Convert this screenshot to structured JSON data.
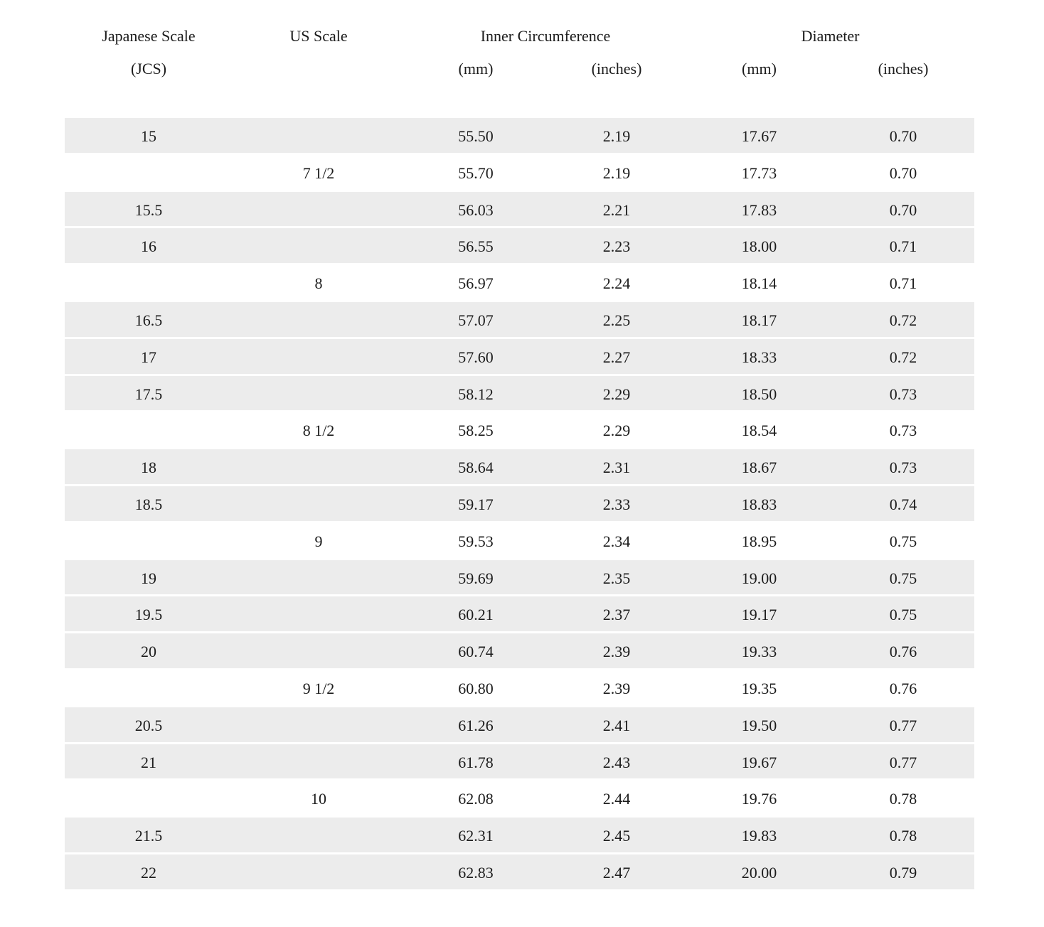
{
  "colors": {
    "shaded_row": "#ececec",
    "plain_row": "#ffffff",
    "text": "#1c1c1c"
  },
  "table": {
    "headers": {
      "japanese_scale": "Japanese Scale",
      "japanese_scale_sub": "(JCS)",
      "us_scale": "US Scale",
      "inner_circumference": "Inner Circumference",
      "diameter": "Diameter",
      "units": {
        "circ_mm": "(mm)",
        "circ_inches": "(inches)",
        "dia_mm": "(mm)",
        "dia_inches": "(inches)"
      }
    },
    "rows": [
      {
        "jcs": "15",
        "us": "",
        "circ_mm": "55.50",
        "circ_in": "2.19",
        "dia_mm": "17.67",
        "dia_in": "0.70",
        "shaded": true
      },
      {
        "jcs": "",
        "us": "7 1/2",
        "circ_mm": "55.70",
        "circ_in": "2.19",
        "dia_mm": "17.73",
        "dia_in": "0.70",
        "shaded": false
      },
      {
        "jcs": "15.5",
        "us": "",
        "circ_mm": "56.03",
        "circ_in": "2.21",
        "dia_mm": "17.83",
        "dia_in": "0.70",
        "shaded": true
      },
      {
        "jcs": "16",
        "us": "",
        "circ_mm": "56.55",
        "circ_in": "2.23",
        "dia_mm": "18.00",
        "dia_in": "0.71",
        "shaded": true
      },
      {
        "jcs": "",
        "us": "8",
        "circ_mm": "56.97",
        "circ_in": "2.24",
        "dia_mm": "18.14",
        "dia_in": "0.71",
        "shaded": false
      },
      {
        "jcs": "16.5",
        "us": "",
        "circ_mm": "57.07",
        "circ_in": "2.25",
        "dia_mm": "18.17",
        "dia_in": "0.72",
        "shaded": true
      },
      {
        "jcs": "17",
        "us": "",
        "circ_mm": "57.60",
        "circ_in": "2.27",
        "dia_mm": "18.33",
        "dia_in": "0.72",
        "shaded": true
      },
      {
        "jcs": "17.5",
        "us": "",
        "circ_mm": "58.12",
        "circ_in": "2.29",
        "dia_mm": "18.50",
        "dia_in": "0.73",
        "shaded": true
      },
      {
        "jcs": "",
        "us": "8 1/2",
        "circ_mm": "58.25",
        "circ_in": "2.29",
        "dia_mm": "18.54",
        "dia_in": "0.73",
        "shaded": false
      },
      {
        "jcs": "18",
        "us": "",
        "circ_mm": "58.64",
        "circ_in": "2.31",
        "dia_mm": "18.67",
        "dia_in": "0.73",
        "shaded": true
      },
      {
        "jcs": "18.5",
        "us": "",
        "circ_mm": "59.17",
        "circ_in": "2.33",
        "dia_mm": "18.83",
        "dia_in": "0.74",
        "shaded": true
      },
      {
        "jcs": "",
        "us": "9",
        "circ_mm": "59.53",
        "circ_in": "2.34",
        "dia_mm": "18.95",
        "dia_in": "0.75",
        "shaded": false
      },
      {
        "jcs": "19",
        "us": "",
        "circ_mm": "59.69",
        "circ_in": "2.35",
        "dia_mm": "19.00",
        "dia_in": "0.75",
        "shaded": true
      },
      {
        "jcs": "19.5",
        "us": "",
        "circ_mm": "60.21",
        "circ_in": "2.37",
        "dia_mm": "19.17",
        "dia_in": "0.75",
        "shaded": true
      },
      {
        "jcs": "20",
        "us": "",
        "circ_mm": "60.74",
        "circ_in": "2.39",
        "dia_mm": "19.33",
        "dia_in": "0.76",
        "shaded": true
      },
      {
        "jcs": "",
        "us": "9 1/2",
        "circ_mm": "60.80",
        "circ_in": "2.39",
        "dia_mm": "19.35",
        "dia_in": "0.76",
        "shaded": false
      },
      {
        "jcs": "20.5",
        "us": "",
        "circ_mm": "61.26",
        "circ_in": "2.41",
        "dia_mm": "19.50",
        "dia_in": "0.77",
        "shaded": true
      },
      {
        "jcs": "21",
        "us": "",
        "circ_mm": "61.78",
        "circ_in": "2.43",
        "dia_mm": "19.67",
        "dia_in": "0.77",
        "shaded": true
      },
      {
        "jcs": "",
        "us": "10",
        "circ_mm": "62.08",
        "circ_in": "2.44",
        "dia_mm": "19.76",
        "dia_in": "0.78",
        "shaded": false
      },
      {
        "jcs": "21.5",
        "us": "",
        "circ_mm": "62.31",
        "circ_in": "2.45",
        "dia_mm": "19.83",
        "dia_in": "0.78",
        "shaded": true
      },
      {
        "jcs": "22",
        "us": "",
        "circ_mm": "62.83",
        "circ_in": "2.47",
        "dia_mm": "20.00",
        "dia_in": "0.79",
        "shaded": true
      }
    ]
  }
}
